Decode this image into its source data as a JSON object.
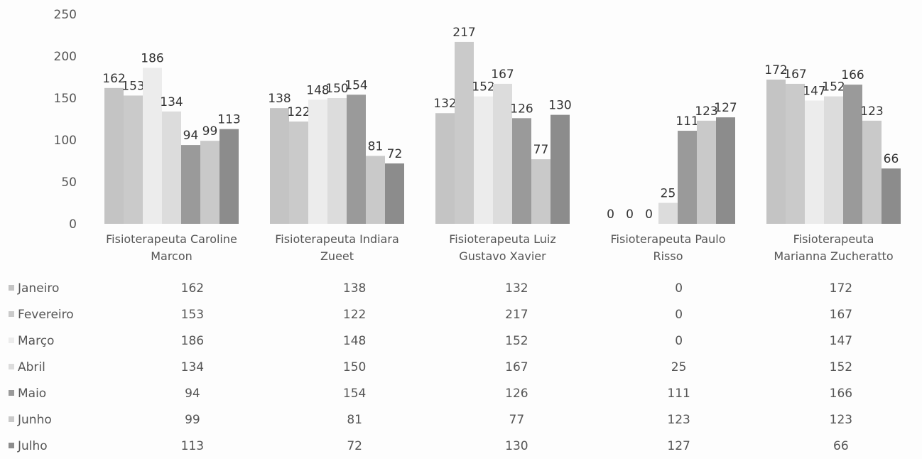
{
  "chart_data": {
    "type": "bar",
    "categories": [
      [
        "Fisioterapeuta Caroline",
        "Marcon"
      ],
      [
        "Fisioterapeuta Indiara",
        "Zueet"
      ],
      [
        "Fisioterapeuta Luiz",
        "Gustavo Xavier"
      ],
      [
        "Fisioterapeuta Paulo",
        "Risso"
      ],
      [
        "Fisioterapeuta",
        "Marianna Zucheratto"
      ]
    ],
    "series": [
      {
        "name": "Janeiro",
        "values": [
          162,
          138,
          132,
          0,
          172
        ],
        "color": "#c4c4c4"
      },
      {
        "name": "Fevereiro",
        "values": [
          153,
          122,
          217,
          0,
          167
        ],
        "color": "#cacaca"
      },
      {
        "name": "Março",
        "values": [
          186,
          148,
          152,
          0,
          147
        ],
        "color": "#ececec"
      },
      {
        "name": "Abril",
        "values": [
          134,
          150,
          167,
          25,
          152
        ],
        "color": "#dcdcdc"
      },
      {
        "name": "Maio",
        "values": [
          94,
          154,
          126,
          111,
          166
        ],
        "color": "#9a9a9a"
      },
      {
        "name": "Junho",
        "values": [
          99,
          81,
          77,
          123,
          123
        ],
        "color": "#c9c9c9"
      },
      {
        "name": "Julho",
        "values": [
          113,
          72,
          130,
          127,
          66
        ],
        "color": "#8c8c8c"
      }
    ],
    "yticks": [
      "250",
      "200",
      "150",
      "100",
      "50",
      "0"
    ],
    "ylim": [
      0,
      250
    ],
    "data_labels": true,
    "legend": "data-table"
  }
}
